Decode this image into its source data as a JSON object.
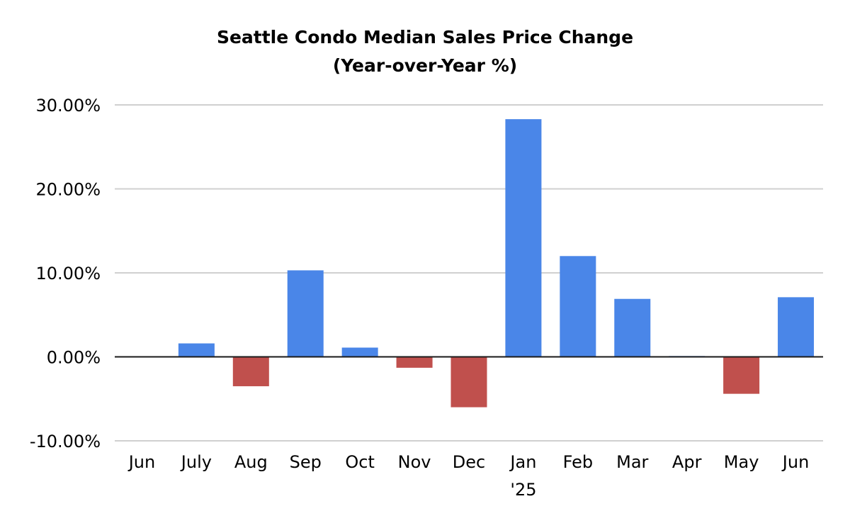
{
  "chart_data": {
    "type": "bar",
    "title": "Seattle Condo Median Sales Price Change",
    "subtitle": "(Year-over-Year %)",
    "categories": [
      "Jun",
      "July",
      "Aug",
      "Sep",
      "Oct",
      "Nov",
      "Dec",
      "Jan",
      "Feb",
      "Mar",
      "Apr",
      "May",
      "Jun"
    ],
    "category_sublabels": [
      "",
      "",
      "",
      "",
      "",
      "",
      "",
      "'25",
      "",
      "",
      "",
      "",
      ""
    ],
    "values": [
      0.0,
      1.6,
      -3.5,
      10.3,
      1.1,
      -1.3,
      -6.0,
      28.3,
      12.0,
      6.9,
      0.1,
      -4.4,
      7.1
    ],
    "ylim": [
      -10,
      30
    ],
    "yticks": [
      30,
      20,
      10,
      0,
      -10
    ],
    "ytick_labels": [
      "30.00%",
      "20.00%",
      "10.00%",
      "0.00%",
      "-10.00%"
    ],
    "xlabel": "",
    "ylabel": "",
    "grid": true,
    "legend": "none",
    "colors": {
      "positive": "#4a86e8",
      "negative": "#c0504d",
      "grid": "#d0d0d0",
      "axis": "#1a1a1a"
    }
  }
}
